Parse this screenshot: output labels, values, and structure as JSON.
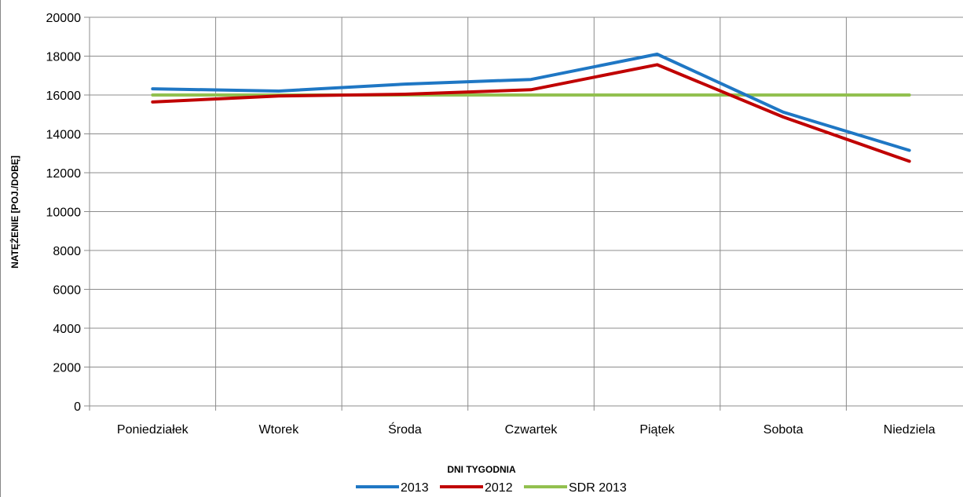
{
  "chart_data": {
    "type": "line",
    "categories": [
      "Poniedziałek",
      "Wtorek",
      "Środa",
      "Czwartek",
      "Piątek",
      "Sobota",
      "Niedziela"
    ],
    "series": [
      {
        "name": "2013",
        "color": "#1f77c4",
        "values": [
          16320,
          16200,
          16560,
          16800,
          18100,
          15120,
          13150
        ]
      },
      {
        "name": "2012",
        "color": "#c00000",
        "values": [
          15640,
          15950,
          16040,
          16270,
          17560,
          14870,
          12590
        ]
      },
      {
        "name": "SDR 2013",
        "color": "#92c04f",
        "values": [
          16000,
          16000,
          16000,
          16000,
          16000,
          16000,
          16000
        ]
      }
    ],
    "yticks": [
      "0",
      "2000",
      "4000",
      "6000",
      "8000",
      "10000",
      "12000",
      "14000",
      "16000",
      "18000",
      "20000"
    ],
    "ylim": [
      0,
      20000
    ],
    "ylabel": "NATĘŻENIE [POJ./DOBĘ]",
    "xlabel": "DNI TYGODNIA",
    "grid": true,
    "legend_position": "bottom"
  }
}
